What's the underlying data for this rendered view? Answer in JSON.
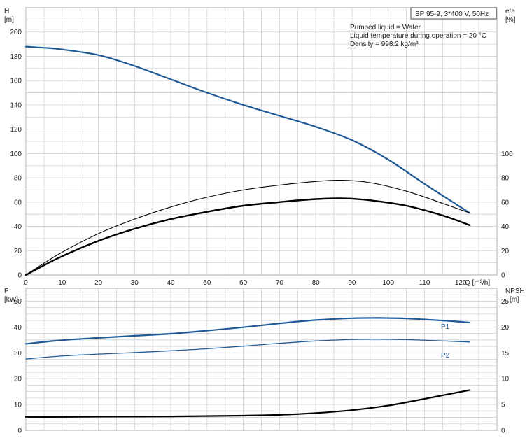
{
  "chart_data": [
    {
      "type": "line",
      "panel": "top",
      "title": "SP 95-9, 3*400 V, 50Hz",
      "notes": [
        "Pumped liquid = Water",
        "Liquid temperature during operation = 20 °C",
        "Density = 998.2 kg/m³"
      ],
      "xlabel": "Q [m³/h]",
      "ylabel_left": [
        "H",
        "[m]"
      ],
      "ylabel_right": [
        "eta",
        "[%]"
      ],
      "xlim": [
        0,
        130
      ],
      "ylim_left": [
        0,
        220
      ],
      "ylim_right": [
        0,
        220
      ],
      "xticks": [
        0,
        10,
        20,
        30,
        40,
        50,
        60,
        70,
        80,
        90,
        100,
        110,
        120
      ],
      "yticks_left": [
        0,
        20,
        40,
        60,
        80,
        100,
        120,
        140,
        160,
        180,
        200
      ],
      "yticks_right": [
        0,
        20,
        40,
        60,
        80,
        100
      ],
      "grid": true,
      "series": [
        {
          "color": "#1f5a96",
          "x": [
            0,
            5,
            9,
            20,
            30,
            40,
            50,
            60,
            70,
            80,
            90,
            100,
            110,
            122.5
          ],
          "values": [
            188,
            187,
            186,
            181,
            172,
            161,
            150,
            140,
            131,
            122,
            111,
            95,
            75,
            51
          ]
        },
        {
          "color": "#000000",
          "x": [
            0,
            9,
            20,
            30,
            40,
            50,
            60,
            70,
            80,
            87,
            95,
            105,
            115,
            122.5
          ],
          "values": [
            0,
            17,
            34,
            46,
            56,
            64,
            70,
            74,
            77,
            78,
            76,
            69,
            59,
            51
          ]
        },
        {
          "color": "#000000",
          "x": [
            0,
            9,
            20,
            30,
            40,
            50,
            60,
            70,
            80,
            88,
            95,
            105,
            115,
            122.5
          ],
          "values": [
            0,
            14,
            28,
            38,
            46,
            52,
            57,
            60,
            62.5,
            63,
            61.5,
            57,
            49,
            41
          ]
        }
      ]
    },
    {
      "type": "line",
      "panel": "bottom",
      "ylabel_left": [
        "P",
        "[kW]"
      ],
      "ylabel_right": [
        "NPSH",
        "[m]"
      ],
      "xlim": [
        0,
        130
      ],
      "ylim_left": [
        0,
        55
      ],
      "ylim_right": [
        0,
        27.5
      ],
      "yticks_left": [
        0,
        10,
        20,
        30,
        40,
        50
      ],
      "yticks_right": [
        0,
        5,
        10,
        15,
        20,
        25
      ],
      "grid": true,
      "series": [
        {
          "name": "P1",
          "color": "#1f5a96",
          "x": [
            0,
            9,
            20,
            30,
            40,
            50,
            60,
            70,
            80,
            90,
            97,
            105,
            115,
            122.5
          ],
          "values": [
            33.5,
            34.8,
            35.8,
            36.6,
            37.4,
            38.6,
            39.9,
            41.4,
            42.7,
            43.4,
            43.5,
            43.3,
            42.5,
            41.7
          ]
        },
        {
          "name": "P2",
          "color": "#1f5a96",
          "x": [
            0,
            9,
            20,
            30,
            40,
            50,
            60,
            70,
            80,
            90,
            97,
            105,
            115,
            122.5
          ],
          "values": [
            27.6,
            28.7,
            29.5,
            30.1,
            30.8,
            31.6,
            32.6,
            33.7,
            34.6,
            35.2,
            35.3,
            35.1,
            34.6,
            34.2
          ]
        },
        {
          "axis": "right",
          "color": "#000000",
          "x": [
            0,
            9,
            20,
            40,
            60,
            70,
            80,
            90,
            100,
            110,
            122.5
          ],
          "values": [
            2.6,
            2.6,
            2.65,
            2.7,
            2.85,
            3.0,
            3.35,
            3.9,
            4.8,
            6.1,
            7.8
          ]
        }
      ]
    }
  ]
}
